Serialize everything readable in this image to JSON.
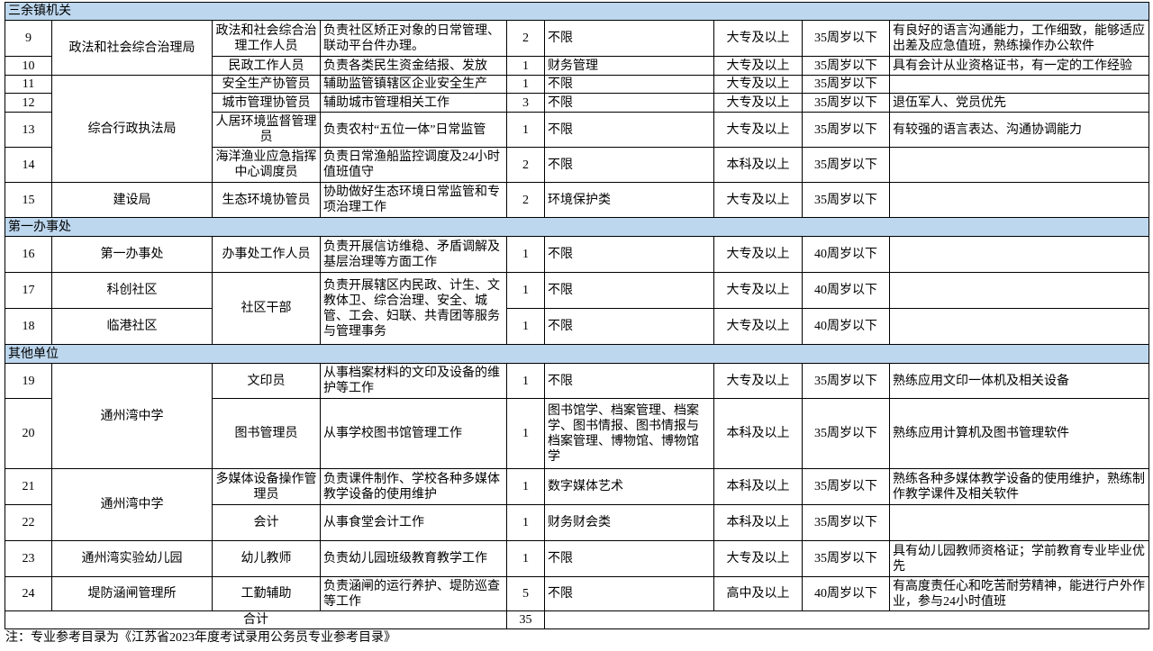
{
  "colors": {
    "section_header_background": "#bdd7ee",
    "border": "#000000"
  },
  "sections": [
    {
      "title": "三余镇机关"
    },
    {
      "title": "第一办事处"
    },
    {
      "title": "其他单位"
    }
  ],
  "rows": [
    {
      "no": "9",
      "unit": "政法和社会综合治理局",
      "post": "政法和社会综合治理工作人员",
      "duty": "负责社区矫正对象的日常管理、联动平台件办理。",
      "count": "2",
      "major": "不限",
      "education": "大专及以上",
      "age": "35周岁以下",
      "other": "有良好的语言沟通能力，工作细致，能够适应出差及应急值班，熟练操作办公软件"
    },
    {
      "no": "10",
      "post": "民政工作人员",
      "duty": "负责各类民生资金结报、发放",
      "count": "1",
      "major": "财务管理",
      "education": "大专及以上",
      "age": "35周岁以下",
      "other": "具有会计从业资格证书，有一定的工作经验"
    },
    {
      "no": "11",
      "unit": "综合行政执法局",
      "post": "安全生产协管员",
      "duty": "辅助监管镇辖区企业安全生产",
      "count": "1",
      "major": "不限",
      "education": "大专及以上",
      "age": "35周岁以下"
    },
    {
      "no": "12",
      "post": "城市管理协管员",
      "duty": "辅助城市管理相关工作",
      "count": "3",
      "major": "不限",
      "education": "大专及以上",
      "age": "35周岁以下",
      "other": "退伍军人、党员优先"
    },
    {
      "no": "13",
      "post": "人居环境监督管理员",
      "duty": "负责农村“五位一体”日常监管",
      "count": "1",
      "major": "不限",
      "education": "大专及以上",
      "age": "35周岁以下",
      "other": "有较强的语言表达、沟通协调能力"
    },
    {
      "no": "14",
      "post": "海洋渔业应急指挥中心调度员",
      "duty": "负责日常渔船监控调度及24小时值班值守",
      "count": "2",
      "major": "不限",
      "education": "本科及以上",
      "age": "35周岁以下"
    },
    {
      "no": "15",
      "unit": "建设局",
      "post": "生态环境协管员",
      "duty": "协助做好生态环境日常监管和专项治理工作",
      "count": "2",
      "major": "环境保护类",
      "education": "大专及以上",
      "age": "35周岁以下"
    },
    {
      "no": "16",
      "unit": "第一办事处",
      "post": "办事处工作人员",
      "duty": "负责开展信访维稳、矛盾调解及基层治理等方面工作",
      "count": "1",
      "major": "不限",
      "education": "大专及以上",
      "age": "40周岁以下"
    },
    {
      "no": "17",
      "unit": "科创社区",
      "post": "社区干部",
      "duty": "负责开展辖区内民政、计生、文教体卫、综合治理、安全、城管、工会、妇联、共青团等服务与管理事务",
      "count": "1",
      "major": "不限",
      "education": "大专及以上",
      "age": "40周岁以下"
    },
    {
      "no": "18",
      "unit": "临港社区",
      "count": "1",
      "major": "不限",
      "education": "大专及以上",
      "age": "40周岁以下"
    },
    {
      "no": "19",
      "unit": "通州湾中学",
      "post": "文印员",
      "duty": "从事档案材料的文印及设备的维护等工作",
      "count": "1",
      "major": "不限",
      "education": "大专及以上",
      "age": "35周岁以下",
      "other": "熟练应用文印一体机及相关设备"
    },
    {
      "no": "20",
      "post": "图书管理员",
      "duty": "从事学校图书馆管理工作",
      "count": "1",
      "major": "图书馆学、档案管理、档案学、图书情报、图书情报与档案管理、博物馆、博物馆学",
      "education": "本科及以上",
      "age": "35周岁以下",
      "other": "熟练应用计算机及图书管理软件"
    },
    {
      "no": "21",
      "unit": "通州湾中学",
      "post": "多媒体设备操作管理员",
      "duty": "负责课件制作、学校各种多媒体教学设备的使用维护",
      "count": "1",
      "major": "数字媒体艺术",
      "education": "本科及以上",
      "age": "35周岁以下",
      "other": "熟练各种多媒体教学设备的使用维护，熟练制作教学课件及相关软件"
    },
    {
      "no": "22",
      "post": "会计",
      "duty": "从事食堂会计工作",
      "count": "1",
      "major": "财务财会类",
      "education": "本科及以上",
      "age": "35周岁以下"
    },
    {
      "no": "23",
      "unit": "通州湾实验幼儿园",
      "post": "幼儿教师",
      "duty": "负责幼儿园班级教育教学工作",
      "count": "1",
      "major": "不限",
      "education": "大专及以上",
      "age": "35周岁以下",
      "other": "具有幼儿园教师资格证；学前教育专业毕业优先"
    },
    {
      "no": "24",
      "unit": "堤防涵闸管理所",
      "post": "工勤辅助",
      "duty": "负责涵闸的运行养护、堤防巡查等工作",
      "count": "5",
      "major": "不限",
      "education": "高中及以上",
      "age": "40周岁以下",
      "other": "有高度责任心和吃苦耐劳精神，能进行户外作业，参与24小时值班"
    }
  ],
  "total": {
    "label": "合计",
    "count": "35"
  },
  "note": "注：专业参考目录为《江苏省2023年度考试录用公务员专业参考目录》"
}
